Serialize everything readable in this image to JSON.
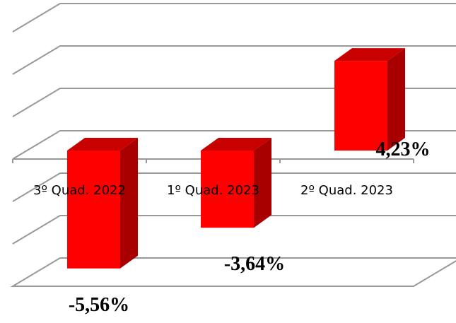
{
  "chart_data": {
    "type": "bar3d",
    "categories": [
      "3º Quad. 2022",
      "1º Quad. 2023",
      "2º Quad. 2023"
    ],
    "values": [
      -5.56,
      -3.64,
      4.23
    ],
    "value_labels": [
      "-5,56%",
      "-3,64%",
      "4,23%"
    ],
    "color": "#ff0000",
    "ylim": [
      -6,
      6
    ],
    "yticks": [
      -6,
      -4,
      -2,
      0,
      2,
      4,
      6
    ],
    "grid": true
  }
}
